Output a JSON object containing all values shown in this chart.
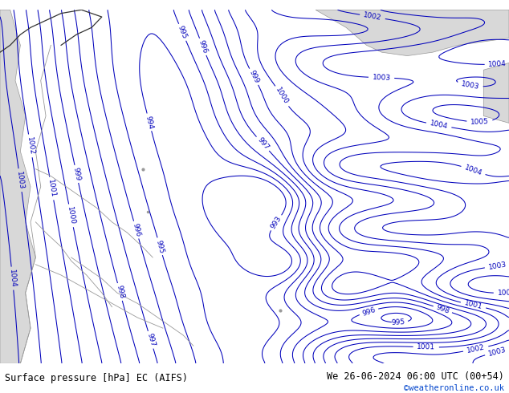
{
  "title_left": "Surface pressure [hPa] EC (AIFS)",
  "title_right": "We 26-06-2024 06:00 UTC (00+54)",
  "copyright": "©weatheronline.co.uk",
  "bg_color": "#c8e6a0",
  "water_color": "#e0e0e0",
  "sea_color": "#dce8f0",
  "contour_color": "#0000bb",
  "border_color": "#999999",
  "black_coast_color": "#333333",
  "contour_linewidth": 0.75,
  "label_fontsize": 6.5,
  "footer_fontsize": 8.5,
  "copyright_fontsize": 7.5,
  "copyright_color": "#0044cc"
}
